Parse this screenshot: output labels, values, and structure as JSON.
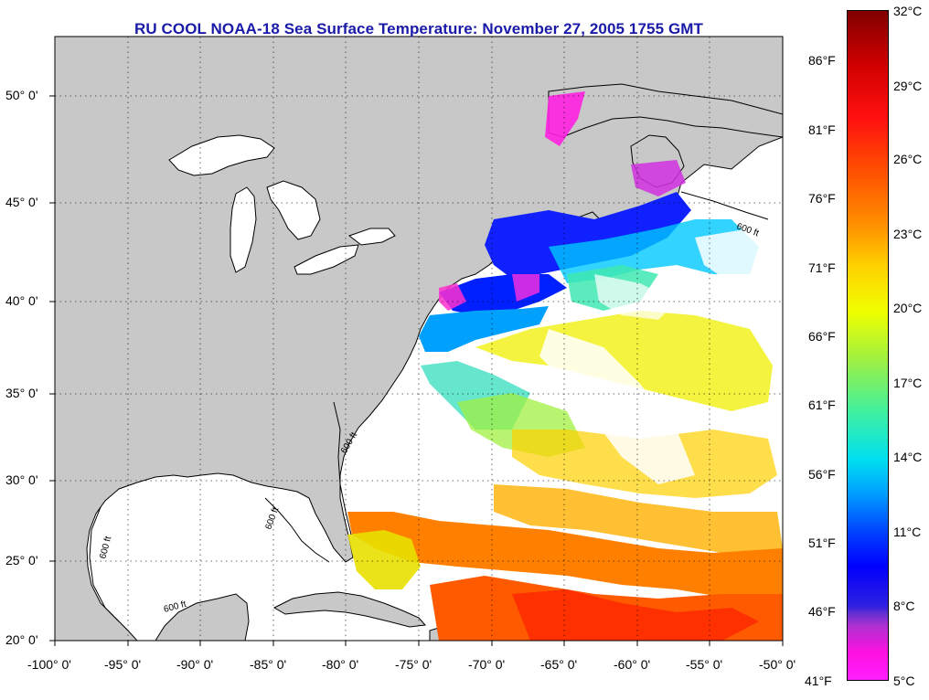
{
  "title": "RU COOL  NOAA-18  Sea Surface Temperature:  November 27, 2005 1755 GMT",
  "x_ticks": [
    "-100° 0'",
    "-95° 0'",
    "-90° 0'",
    "-85° 0'",
    "-80° 0'",
    "-75° 0'",
    "-70° 0'",
    "-65° 0'",
    "-60° 0'",
    "-55° 0'",
    "-50° 0'"
  ],
  "y_ticks": [
    "50° 0'",
    "45° 0'",
    "40° 0'",
    "35° 0'",
    "30° 0'",
    "25° 0'",
    "20° 0'"
  ],
  "colorbar": {
    "celsius": [
      "32°C",
      "29°C",
      "26°C",
      "23°C",
      "20°C",
      "17°C",
      "14°C",
      "11°C",
      "8°C",
      "5°C"
    ],
    "fahrenheit": [
      "86°F",
      "81°F",
      "76°F",
      "71°F",
      "66°F",
      "61°F",
      "56°F",
      "51°F",
      "46°F",
      "41°F"
    ]
  },
  "contour_label": "600 ft",
  "colors": {
    "land": "#c8c8c8",
    "title": "#1a1aa8",
    "ocean": "#ffffff"
  }
}
